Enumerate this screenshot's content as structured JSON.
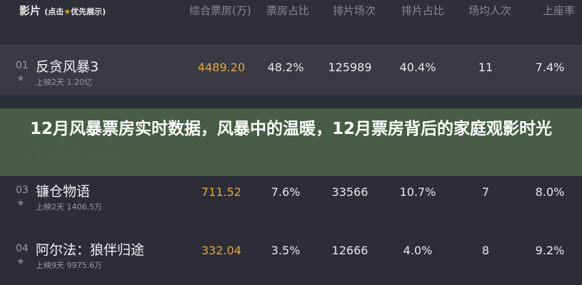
{
  "header": {
    "film": "影片",
    "film_hint_pre": "(点击",
    "film_hint_post": "优先展示)",
    "cols": [
      "综合票房(万)",
      "票房占比",
      "排片场次",
      "排片占比",
      "场均人次",
      "上座率"
    ]
  },
  "rows": [
    {
      "rank": "01",
      "name": "反贪风暴3",
      "sub": "上映2天  1.20亿",
      "vals": [
        "4489.20",
        "48.2%",
        "125989",
        "40.4%",
        "11",
        "7.4%"
      ]
    },
    {
      "rank": "02",
      "name": "",
      "sub": "上映16天  10.68亿",
      "vals": [
        "",
        "",
        "",
        "",
        "",
        ""
      ]
    },
    {
      "rank": "03",
      "name": "镰仓物语",
      "sub": "上映2天  1406.5万",
      "vals": [
        "711.52",
        "7.6%",
        "33566",
        "10.7%",
        "7",
        "8.0%"
      ]
    },
    {
      "rank": "04",
      "name": "阿尔法：狼伴归途",
      "sub": "上映9天  9975.6万",
      "vals": [
        "332.04",
        "3.5%",
        "12666",
        "4.0%",
        "8",
        "9.2%"
      ]
    }
  ],
  "overlay_title": "12月风暴票房实时数据，风暴中的温暖，12月票房背后的家庭观影时光",
  "colors": {
    "box_office": "#e0a83a",
    "overlay": "#4a6046"
  }
}
